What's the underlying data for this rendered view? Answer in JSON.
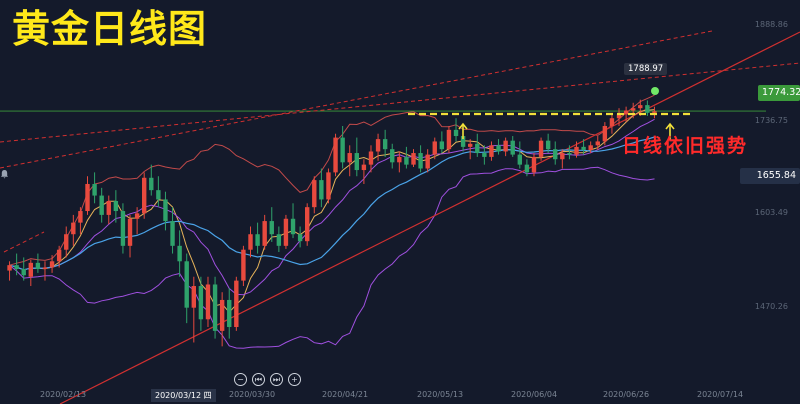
{
  "chart_data": {
    "type": "candlestick",
    "title": "黄金日线图",
    "annotation": "日线依旧强势",
    "x_ticks": [
      "2020/02/13",
      "2020/03/12 四",
      "2020/03/30",
      "2020/04/21",
      "2020/05/13",
      "2020/06/04",
      "2020/06/26",
      "2020/07/14"
    ],
    "active_x_tick": "2020/03/12 四",
    "y_ticks": [
      1888.86,
      1736.75,
      1603.49,
      1470.26
    ],
    "ylim": [
      1420,
      1905
    ],
    "current_price": "1774.32",
    "alert_price": "1655.84",
    "high_label": "1788.97",
    "grid": false,
    "candles": [
      {
        "o": 1568,
        "h": 1580,
        "l": 1555,
        "c": 1575
      },
      {
        "o": 1575,
        "h": 1590,
        "l": 1562,
        "c": 1570
      },
      {
        "o": 1570,
        "h": 1585,
        "l": 1555,
        "c": 1562
      },
      {
        "o": 1560,
        "h": 1582,
        "l": 1548,
        "c": 1578
      },
      {
        "o": 1578,
        "h": 1590,
        "l": 1565,
        "c": 1570
      },
      {
        "o": 1570,
        "h": 1580,
        "l": 1555,
        "c": 1572
      },
      {
        "o": 1572,
        "h": 1588,
        "l": 1565,
        "c": 1580
      },
      {
        "o": 1580,
        "h": 1600,
        "l": 1572,
        "c": 1595
      },
      {
        "o": 1595,
        "h": 1625,
        "l": 1585,
        "c": 1615
      },
      {
        "o": 1615,
        "h": 1640,
        "l": 1600,
        "c": 1630
      },
      {
        "o": 1630,
        "h": 1650,
        "l": 1615,
        "c": 1645
      },
      {
        "o": 1645,
        "h": 1690,
        "l": 1640,
        "c": 1680
      },
      {
        "o": 1680,
        "h": 1695,
        "l": 1655,
        "c": 1665
      },
      {
        "o": 1665,
        "h": 1675,
        "l": 1630,
        "c": 1640
      },
      {
        "o": 1640,
        "h": 1665,
        "l": 1628,
        "c": 1658
      },
      {
        "o": 1658,
        "h": 1672,
        "l": 1630,
        "c": 1645
      },
      {
        "o": 1645,
        "h": 1655,
        "l": 1590,
        "c": 1600
      },
      {
        "o": 1600,
        "h": 1640,
        "l": 1585,
        "c": 1635
      },
      {
        "o": 1635,
        "h": 1650,
        "l": 1615,
        "c": 1642
      },
      {
        "o": 1642,
        "h": 1695,
        "l": 1635,
        "c": 1688
      },
      {
        "o": 1688,
        "h": 1705,
        "l": 1665,
        "c": 1672
      },
      {
        "o": 1672,
        "h": 1690,
        "l": 1650,
        "c": 1660
      },
      {
        "o": 1660,
        "h": 1670,
        "l": 1620,
        "c": 1632
      },
      {
        "o": 1632,
        "h": 1650,
        "l": 1590,
        "c": 1600
      },
      {
        "o": 1600,
        "h": 1620,
        "l": 1560,
        "c": 1580
      },
      {
        "o": 1580,
        "h": 1590,
        "l": 1500,
        "c": 1520
      },
      {
        "o": 1520,
        "h": 1560,
        "l": 1475,
        "c": 1548
      },
      {
        "o": 1548,
        "h": 1560,
        "l": 1490,
        "c": 1505
      },
      {
        "o": 1505,
        "h": 1560,
        "l": 1495,
        "c": 1550
      },
      {
        "o": 1550,
        "h": 1560,
        "l": 1480,
        "c": 1490
      },
      {
        "o": 1490,
        "h": 1540,
        "l": 1470,
        "c": 1530
      },
      {
        "o": 1530,
        "h": 1545,
        "l": 1480,
        "c": 1495
      },
      {
        "o": 1495,
        "h": 1560,
        "l": 1490,
        "c": 1555
      },
      {
        "o": 1555,
        "h": 1600,
        "l": 1548,
        "c": 1595
      },
      {
        "o": 1595,
        "h": 1625,
        "l": 1585,
        "c": 1615
      },
      {
        "o": 1615,
        "h": 1630,
        "l": 1590,
        "c": 1600
      },
      {
        "o": 1600,
        "h": 1640,
        "l": 1595,
        "c": 1632
      },
      {
        "o": 1632,
        "h": 1650,
        "l": 1605,
        "c": 1615
      },
      {
        "o": 1615,
        "h": 1625,
        "l": 1592,
        "c": 1600
      },
      {
        "o": 1600,
        "h": 1640,
        "l": 1596,
        "c": 1635
      },
      {
        "o": 1635,
        "h": 1655,
        "l": 1610,
        "c": 1615
      },
      {
        "o": 1615,
        "h": 1625,
        "l": 1598,
        "c": 1606
      },
      {
        "o": 1606,
        "h": 1655,
        "l": 1600,
        "c": 1650
      },
      {
        "o": 1650,
        "h": 1690,
        "l": 1642,
        "c": 1685
      },
      {
        "o": 1685,
        "h": 1700,
        "l": 1650,
        "c": 1660
      },
      {
        "o": 1660,
        "h": 1700,
        "l": 1655,
        "c": 1695
      },
      {
        "o": 1695,
        "h": 1745,
        "l": 1690,
        "c": 1740
      },
      {
        "o": 1740,
        "h": 1755,
        "l": 1700,
        "c": 1708
      },
      {
        "o": 1708,
        "h": 1730,
        "l": 1690,
        "c": 1720
      },
      {
        "o": 1720,
        "h": 1740,
        "l": 1690,
        "c": 1698
      },
      {
        "o": 1698,
        "h": 1712,
        "l": 1680,
        "c": 1705
      },
      {
        "o": 1705,
        "h": 1730,
        "l": 1695,
        "c": 1722
      },
      {
        "o": 1722,
        "h": 1745,
        "l": 1710,
        "c": 1738
      },
      {
        "o": 1738,
        "h": 1750,
        "l": 1715,
        "c": 1725
      },
      {
        "o": 1725,
        "h": 1732,
        "l": 1700,
        "c": 1708
      },
      {
        "o": 1708,
        "h": 1722,
        "l": 1695,
        "c": 1715
      },
      {
        "o": 1715,
        "h": 1728,
        "l": 1700,
        "c": 1705
      },
      {
        "o": 1705,
        "h": 1725,
        "l": 1702,
        "c": 1720
      },
      {
        "o": 1720,
        "h": 1730,
        "l": 1695,
        "c": 1700
      },
      {
        "o": 1700,
        "h": 1725,
        "l": 1695,
        "c": 1718
      },
      {
        "o": 1718,
        "h": 1740,
        "l": 1712,
        "c": 1735
      },
      {
        "o": 1735,
        "h": 1748,
        "l": 1720,
        "c": 1725
      },
      {
        "o": 1725,
        "h": 1755,
        "l": 1720,
        "c": 1750
      },
      {
        "o": 1750,
        "h": 1765,
        "l": 1735,
        "c": 1742
      },
      {
        "o": 1742,
        "h": 1752,
        "l": 1722,
        "c": 1728
      },
      {
        "o": 1728,
        "h": 1738,
        "l": 1712,
        "c": 1732
      },
      {
        "o": 1732,
        "h": 1745,
        "l": 1715,
        "c": 1720
      },
      {
        "o": 1720,
        "h": 1730,
        "l": 1705,
        "c": 1715
      },
      {
        "o": 1715,
        "h": 1735,
        "l": 1710,
        "c": 1730
      },
      {
        "o": 1730,
        "h": 1738,
        "l": 1718,
        "c": 1722
      },
      {
        "o": 1722,
        "h": 1740,
        "l": 1716,
        "c": 1736
      },
      {
        "o": 1736,
        "h": 1742,
        "l": 1715,
        "c": 1718
      },
      {
        "o": 1718,
        "h": 1735,
        "l": 1700,
        "c": 1705
      },
      {
        "o": 1705,
        "h": 1712,
        "l": 1690,
        "c": 1695
      },
      {
        "o": 1695,
        "h": 1720,
        "l": 1690,
        "c": 1715
      },
      {
        "o": 1715,
        "h": 1740,
        "l": 1710,
        "c": 1736
      },
      {
        "o": 1736,
        "h": 1745,
        "l": 1720,
        "c": 1725
      },
      {
        "o": 1725,
        "h": 1735,
        "l": 1705,
        "c": 1712
      },
      {
        "o": 1712,
        "h": 1725,
        "l": 1700,
        "c": 1720
      },
      {
        "o": 1720,
        "h": 1730,
        "l": 1712,
        "c": 1718
      },
      {
        "o": 1718,
        "h": 1735,
        "l": 1714,
        "c": 1728
      },
      {
        "o": 1728,
        "h": 1738,
        "l": 1718,
        "c": 1724
      },
      {
        "o": 1724,
        "h": 1735,
        "l": 1720,
        "c": 1730
      },
      {
        "o": 1730,
        "h": 1742,
        "l": 1724,
        "c": 1735
      },
      {
        "o": 1735,
        "h": 1760,
        "l": 1730,
        "c": 1755
      },
      {
        "o": 1755,
        "h": 1770,
        "l": 1745,
        "c": 1765
      },
      {
        "o": 1765,
        "h": 1778,
        "l": 1755,
        "c": 1770
      },
      {
        "o": 1770,
        "h": 1780,
        "l": 1760,
        "c": 1775
      },
      {
        "o": 1775,
        "h": 1785,
        "l": 1765,
        "c": 1778
      },
      {
        "o": 1778,
        "h": 1789,
        "l": 1768,
        "c": 1782
      },
      {
        "o": 1782,
        "h": 1788,
        "l": 1768,
        "c": 1772
      },
      {
        "o": 1772,
        "h": 1780,
        "l": 1765,
        "c": 1774
      }
    ]
  },
  "toolbar": {
    "buttons": [
      "−",
      "⏮",
      "⏭",
      "+"
    ]
  },
  "colors": {
    "up": "#e84a3e",
    "down": "#2fa36b",
    "title": "#ffe81a",
    "annotation": "#ff2a2a",
    "support": "#f2e03a",
    "trend": "#d03030",
    "ma_fast": "#e6b35a",
    "ma_slow": "#4aa3e8",
    "ma_mid": "#a050e0",
    "band": "#c24a4a"
  }
}
